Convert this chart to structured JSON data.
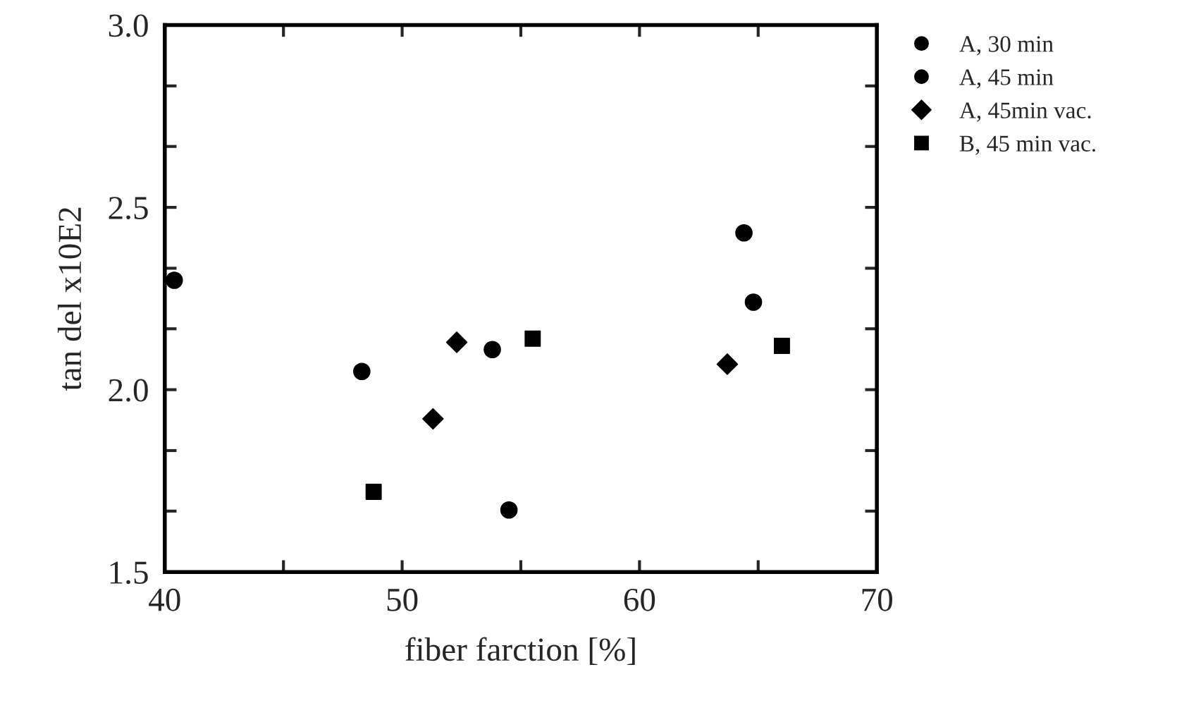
{
  "chart_data": {
    "type": "scatter",
    "xlabel": "fiber farction [%]",
    "ylabel": "tan del x10E2",
    "xlim": [
      40,
      70
    ],
    "ylim": [
      1.5,
      3.0
    ],
    "xticks": [
      40,
      {
        "value": 45,
        "label": null
      },
      50,
      {
        "value": 55,
        "label": null
      },
      60,
      {
        "value": 65,
        "label": null
      },
      70
    ],
    "yticks": [
      {
        "value": 1.5,
        "label": "1.5"
      },
      {
        "value": 1.667,
        "label": null
      },
      {
        "value": 1.833,
        "label": null
      },
      {
        "value": 2.0,
        "label": "2.0"
      },
      {
        "value": 2.167,
        "label": null
      },
      {
        "value": 2.333,
        "label": null
      },
      {
        "value": 2.5,
        "label": "2.5"
      },
      {
        "value": 2.667,
        "label": null
      },
      {
        "value": 2.833,
        "label": null
      },
      {
        "value": 3.0,
        "label": "3.0"
      }
    ],
    "legend": "top right",
    "grid": false,
    "series": [
      {
        "name": "A, 30 min",
        "color": "#000000",
        "marker": "circle",
        "x": [
          40.4,
          54.5,
          64.4
        ],
        "values": [
          2.3,
          1.67,
          2.43
        ]
      },
      {
        "name": "A, 45 min",
        "color": "#000000",
        "marker": "circle",
        "x": [
          48.3,
          53.8,
          64.8
        ],
        "values": [
          2.05,
          2.11,
          2.24
        ]
      },
      {
        "name": "A, 45min vac.",
        "color": "#000000",
        "marker": "diamond",
        "x": [
          51.3,
          52.3,
          63.7
        ],
        "values": [
          1.92,
          2.13,
          2.07
        ]
      },
      {
        "name": "B, 45 min vac.",
        "color": "#000000",
        "marker": "square",
        "x": [
          48.8,
          55.5,
          66.0
        ],
        "values": [
          1.72,
          2.14,
          2.12
        ]
      }
    ]
  }
}
